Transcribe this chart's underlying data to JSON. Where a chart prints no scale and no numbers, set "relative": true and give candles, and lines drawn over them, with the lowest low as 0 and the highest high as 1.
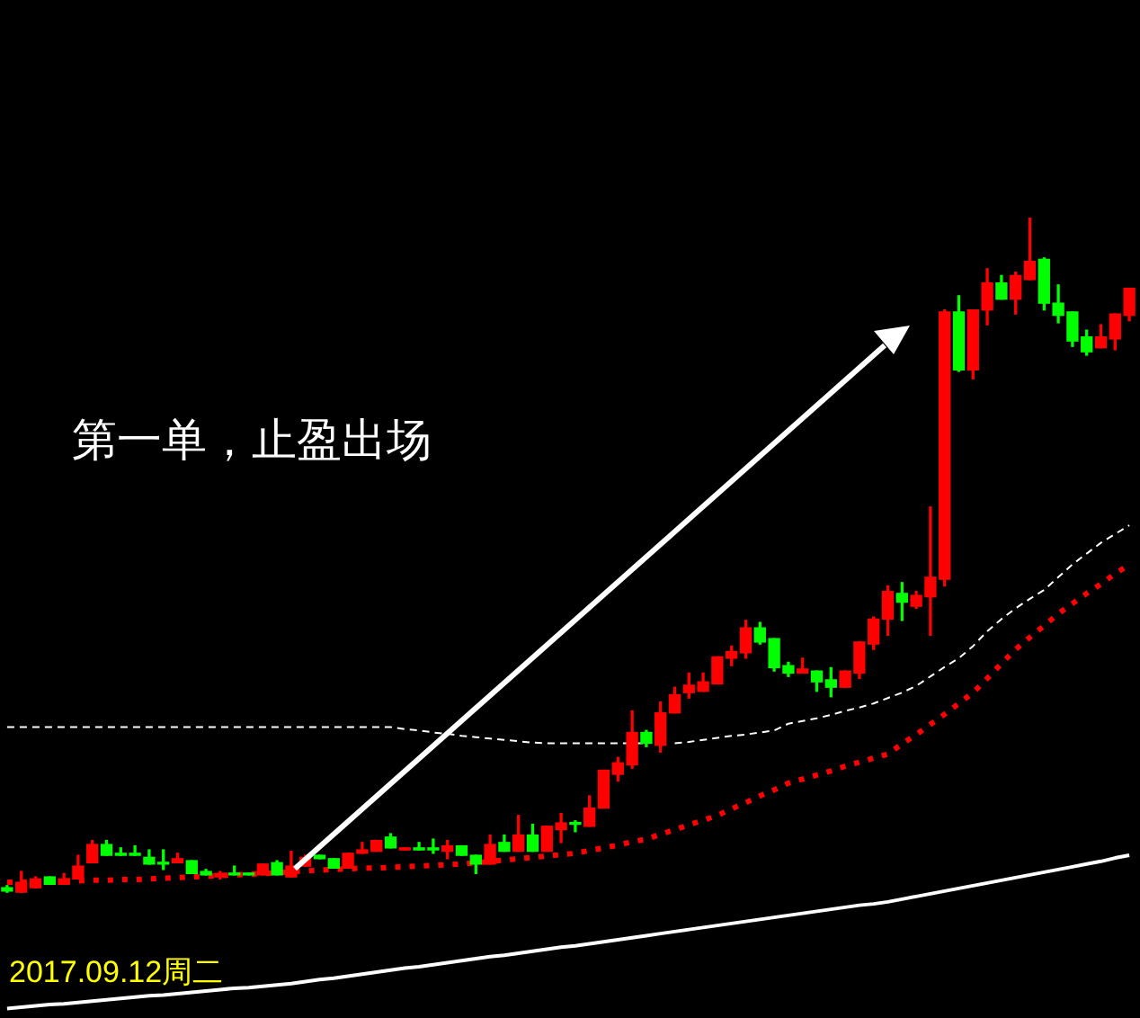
{
  "chart_data": {
    "type": "candlestick",
    "relative": true,
    "grid": false,
    "legend": false,
    "tick_labels": false,
    "marker": "none",
    "categories": [
      null,
      null,
      null,
      null,
      null,
      null,
      null,
      null,
      null,
      null,
      null,
      null,
      null,
      null,
      null,
      null,
      null,
      null,
      null,
      null,
      null,
      null,
      null,
      null,
      null,
      null,
      null,
      null,
      null,
      null,
      null,
      null,
      null,
      null,
      null,
      null,
      null,
      null,
      null,
      null,
      null,
      null,
      null,
      null,
      null,
      null,
      null,
      null,
      null,
      null,
      null,
      null,
      null,
      null,
      null,
      null,
      null,
      null,
      null,
      null,
      null,
      null,
      null,
      null,
      null,
      null,
      null,
      null,
      null,
      null,
      null,
      null,
      null,
      null,
      null,
      null,
      null,
      null,
      null,
      null
    ],
    "ohlc": [
      [
        0.008,
        0.011,
        0,
        0.003
      ],
      [
        0,
        0.032,
        0,
        0.016
      ],
      [
        0.008,
        0.024,
        0.008,
        0.021
      ],
      [
        0.024,
        0.024,
        0.013,
        0.013
      ],
      [
        0.013,
        0.029,
        0.013,
        0.021
      ],
      [
        0.021,
        0.056,
        0.021,
        0.04
      ],
      [
        0.045,
        0.078,
        0.045,
        0.072
      ],
      [
        0.072,
        0.078,
        0.056,
        0.056
      ],
      [
        0.059,
        0.067,
        0.056,
        0.056
      ],
      [
        0.059,
        0.07,
        0.056,
        0.056
      ],
      [
        0.053,
        0.064,
        0.043,
        0.043
      ],
      [
        0.045,
        0.064,
        0.035,
        0.043
      ],
      [
        0.045,
        0.059,
        0.045,
        0.051
      ],
      [
        0.048,
        0.048,
        0.029,
        0.029
      ],
      [
        0.032,
        0.035,
        0.027,
        0.027
      ],
      [
        0.024,
        0.032,
        0.021,
        0.029
      ],
      [
        0.029,
        0.04,
        0.027,
        0.027
      ],
      [
        0.029,
        0.029,
        0.027,
        0.027
      ],
      [
        0.027,
        0.043,
        0.027,
        0.043
      ],
      [
        0.045,
        0.048,
        0.027,
        0.027
      ],
      [
        0.024,
        0.062,
        0.024,
        0.04
      ],
      [
        0.04,
        0.056,
        0.04,
        0.053
      ],
      [
        0.056,
        0.056,
        0.051,
        0.051
      ],
      [
        0.051,
        0.051,
        0.037,
        0.037
      ],
      [
        0.037,
        0.059,
        0.037,
        0.059
      ],
      [
        0.059,
        0.075,
        0.059,
        0.064
      ],
      [
        0.062,
        0.078,
        0.062,
        0.078
      ],
      [
        0.083,
        0.088,
        0.067,
        0.067
      ],
      [
        0.064,
        0.067,
        0.064,
        0.067
      ],
      [
        0.067,
        0.075,
        0.064,
        0.064
      ],
      [
        0.067,
        0.08,
        0.059,
        0.064
      ],
      [
        0.062,
        0.078,
        0.051,
        0.07
      ],
      [
        0.07,
        0.07,
        0.056,
        0.056
      ],
      [
        0.056,
        0.056,
        0.029,
        0.043
      ],
      [
        0.043,
        0.086,
        0.043,
        0.072
      ],
      [
        0.075,
        0.086,
        0.062,
        0.062
      ],
      [
        0.062,
        0.115,
        0.062,
        0.086
      ],
      [
        0.086,
        0.102,
        0.062,
        0.062
      ],
      [
        0.062,
        0.099,
        0.062,
        0.099
      ],
      [
        0.094,
        0.118,
        0.075,
        0.104
      ],
      [
        0.104,
        0.107,
        0.091,
        0.102
      ],
      [
        0.099,
        0.144,
        0.099,
        0.126
      ],
      [
        0.126,
        0.182,
        0.126,
        0.182
      ],
      [
        0.176,
        0.201,
        0.166,
        0.193
      ],
      [
        0.19,
        0.27,
        0.185,
        0.238
      ],
      [
        0.238,
        0.241,
        0.217,
        0.222
      ],
      [
        0.219,
        0.283,
        0.209,
        0.267
      ],
      [
        0.267,
        0.305,
        0.267,
        0.294
      ],
      [
        0.297,
        0.326,
        0.289,
        0.308
      ],
      [
        0.299,
        0.326,
        0.299,
        0.313
      ],
      [
        0.31,
        0.35,
        0.31,
        0.35
      ],
      [
        0.348,
        0.366,
        0.337,
        0.358
      ],
      [
        0.356,
        0.404,
        0.348,
        0.393
      ],
      [
        0.393,
        0.401,
        0.369,
        0.372
      ],
      [
        0.377,
        0.377,
        0.329,
        0.334
      ],
      [
        0.337,
        0.342,
        0.321,
        0.326
      ],
      [
        0.326,
        0.348,
        0.326,
        0.332
      ],
      [
        0.329,
        0.329,
        0.299,
        0.313
      ],
      [
        0.316,
        0.334,
        0.291,
        0.305
      ],
      [
        0.305,
        0.329,
        0.305,
        0.329
      ],
      [
        0.326,
        0.372,
        0.318,
        0.372
      ],
      [
        0.369,
        0.409,
        0.361,
        0.406
      ],
      [
        0.406,
        0.455,
        0.382,
        0.447
      ],
      [
        0.444,
        0.46,
        0.404,
        0.431
      ],
      [
        0.425,
        0.447,
        0.422,
        0.441
      ],
      [
        0.439,
        0.572,
        0.382,
        0.468
      ],
      [
        0.465,
        0.864,
        0.455,
        0.861
      ],
      [
        0.861,
        0.885,
        0.773,
        0.775
      ],
      [
        0.775,
        0.864,
        0.762,
        0.864
      ],
      [
        0.864,
        0.925,
        0.842,
        0.904
      ],
      [
        0.904,
        0.915,
        0.88,
        0.88
      ],
      [
        0.88,
        0.92,
        0.858,
        0.915
      ],
      [
        0.909,
        1,
        0.909,
        0.936
      ],
      [
        0.939,
        0.941,
        0.864,
        0.874
      ],
      [
        0.874,
        0.901,
        0.845,
        0.856
      ],
      [
        0.861,
        0.861,
        0.81,
        0.818
      ],
      [
        0.824,
        0.834,
        0.797,
        0.802
      ],
      [
        0.808,
        0.842,
        0.808,
        0.824
      ],
      [
        0.821,
        0.858,
        0.805,
        0.858
      ],
      [
        0.856,
        0.896,
        0.848,
        0.896
      ]
    ],
    "series": [
      {
        "type": "line",
        "color": "#ffffff",
        "line_style": "dashed",
        "values": [
          0.246,
          0.246,
          0.246,
          0.246,
          0.246,
          0.246,
          0.246,
          0.246,
          0.246,
          0.246,
          0.246,
          0.246,
          0.246,
          0.246,
          0.246,
          0.246,
          0.246,
          0.246,
          0.246,
          0.246,
          0.246,
          0.246,
          0.246,
          0.246,
          0.246,
          0.246,
          0.246,
          0.246,
          0.243,
          0.241,
          0.238,
          0.236,
          0.233,
          0.231,
          0.229,
          0.227,
          0.225,
          0.223,
          0.222,
          0.222,
          0.222,
          0.222,
          0.222,
          0.222,
          0.222,
          0.222,
          null,
          0.222,
          0.224,
          0.227,
          0.23,
          0.233,
          0.235,
          0.238,
          0.241,
          0.251,
          0.255,
          0.259,
          0.264,
          0.27,
          0.275,
          0.281,
          0.289,
          0.297,
          0.307,
          0.321,
          0.335,
          0.348,
          0.366,
          0.388,
          0.406,
          0.422,
          0.436,
          0.449,
          0.468,
          0.487,
          0.503,
          0.519,
          0.532,
          0.545
        ]
      },
      {
        "type": "line",
        "color": "#ff0000",
        "line_style": "dotted",
        "values": [
          0.016,
          0.016,
          0.017,
          0.017,
          0.018,
          0.018,
          0.019,
          0.019,
          0.02,
          0.02,
          0.021,
          0.022,
          0.023,
          0.024,
          0.025,
          0.026,
          0.027,
          0.028,
          0.029,
          0.03,
          0.032,
          0.033,
          0.034,
          0.035,
          0.036,
          0.037,
          0.037,
          0.038,
          0.039,
          0.04,
          0.041,
          0.042,
          0.043,
          0.045,
          0.047,
          0.049,
          0.051,
          0.053,
          0.055,
          0.057,
          0.059,
          0.063,
          0.067,
          0.071,
          0.076,
          0.08,
          0.087,
          0.094,
          0.101,
          0.108,
          0.115,
          0.125,
          0.134,
          0.144,
          0.153,
          0.163,
          0.169,
          0.175,
          0.181,
          0.188,
          0.194,
          0.2,
          0.206,
          0.221,
          0.235,
          0.25,
          0.265,
          0.281,
          0.297,
          0.318,
          0.34,
          0.361,
          0.379,
          0.396,
          0.414,
          0.429,
          0.444,
          0.458,
          0.473,
          0.487
        ]
      },
      {
        "type": "line",
        "color": "#ffffff",
        "line_style": "solid",
        "values": [
          -0.171,
          -0.169,
          -0.167,
          -0.165,
          -0.164,
          -0.162,
          -0.16,
          -0.158,
          -0.156,
          -0.154,
          -0.152,
          -0.151,
          -0.149,
          -0.147,
          -0.145,
          -0.143,
          -0.141,
          -0.14,
          -0.138,
          -0.136,
          -0.134,
          -0.131,
          -0.128,
          -0.126,
          -0.123,
          -0.12,
          -0.117,
          -0.114,
          -0.111,
          -0.109,
          -0.106,
          -0.103,
          -0.1,
          -0.097,
          -0.094,
          -0.092,
          -0.089,
          -0.086,
          -0.083,
          -0.08,
          -0.078,
          -0.075,
          -0.072,
          -0.069,
          -0.066,
          -0.063,
          -0.06,
          -0.057,
          -0.054,
          -0.051,
          -0.048,
          -0.045,
          -0.042,
          -0.039,
          -0.036,
          -0.033,
          -0.03,
          -0.027,
          -0.024,
          -0.021,
          -0.018,
          -0.016,
          -0.013,
          -0.009,
          -0.005,
          -0.001,
          0.003,
          0.007,
          0.011,
          0.015,
          0.019,
          0.023,
          0.027,
          0.031,
          0.035,
          0.039,
          0.043,
          0.047,
          0.052,
          0.056
        ]
      }
    ],
    "annotations": [
      "第一单，止盈出场",
      "2017.09.12周二"
    ]
  }
}
